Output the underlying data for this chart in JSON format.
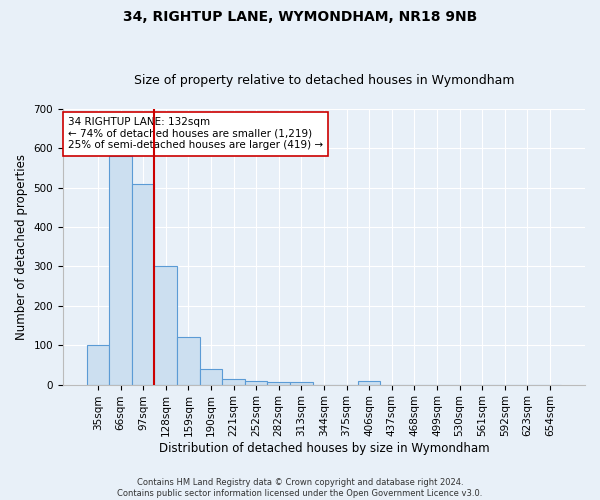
{
  "title1": "34, RIGHTUP LANE, WYMONDHAM, NR18 9NB",
  "title2": "Size of property relative to detached houses in Wymondham",
  "xlabel": "Distribution of detached houses by size in Wymondham",
  "ylabel": "Number of detached properties",
  "footer1": "Contains HM Land Registry data © Crown copyright and database right 2024.",
  "footer2": "Contains public sector information licensed under the Open Government Licence v3.0.",
  "bar_labels": [
    "35sqm",
    "66sqm",
    "97sqm",
    "128sqm",
    "159sqm",
    "190sqm",
    "221sqm",
    "252sqm",
    "282sqm",
    "313sqm",
    "344sqm",
    "375sqm",
    "406sqm",
    "437sqm",
    "468sqm",
    "499sqm",
    "530sqm",
    "561sqm",
    "592sqm",
    "623sqm",
    "654sqm"
  ],
  "bar_values": [
    100,
    580,
    510,
    300,
    120,
    40,
    15,
    8,
    7,
    7,
    0,
    0,
    8,
    0,
    0,
    0,
    0,
    0,
    0,
    0,
    0
  ],
  "bar_color": "#ccdff0",
  "bar_edge_color": "#5b9bd5",
  "vline_color": "#cc0000",
  "annotation_text": "34 RIGHTUP LANE: 132sqm\n← 74% of detached houses are smaller (1,219)\n25% of semi-detached houses are larger (419) →",
  "annotation_box_color": "white",
  "annotation_box_edge_color": "#cc0000",
  "ylim": [
    0,
    700
  ],
  "yticks": [
    0,
    100,
    200,
    300,
    400,
    500,
    600,
    700
  ],
  "bg_color": "#e8f0f8",
  "grid_color": "white",
  "title_fontsize": 10,
  "subtitle_fontsize": 9,
  "axis_label_fontsize": 8.5,
  "tick_fontsize": 7.5,
  "annotation_fontsize": 7.5,
  "footer_fontsize": 6
}
